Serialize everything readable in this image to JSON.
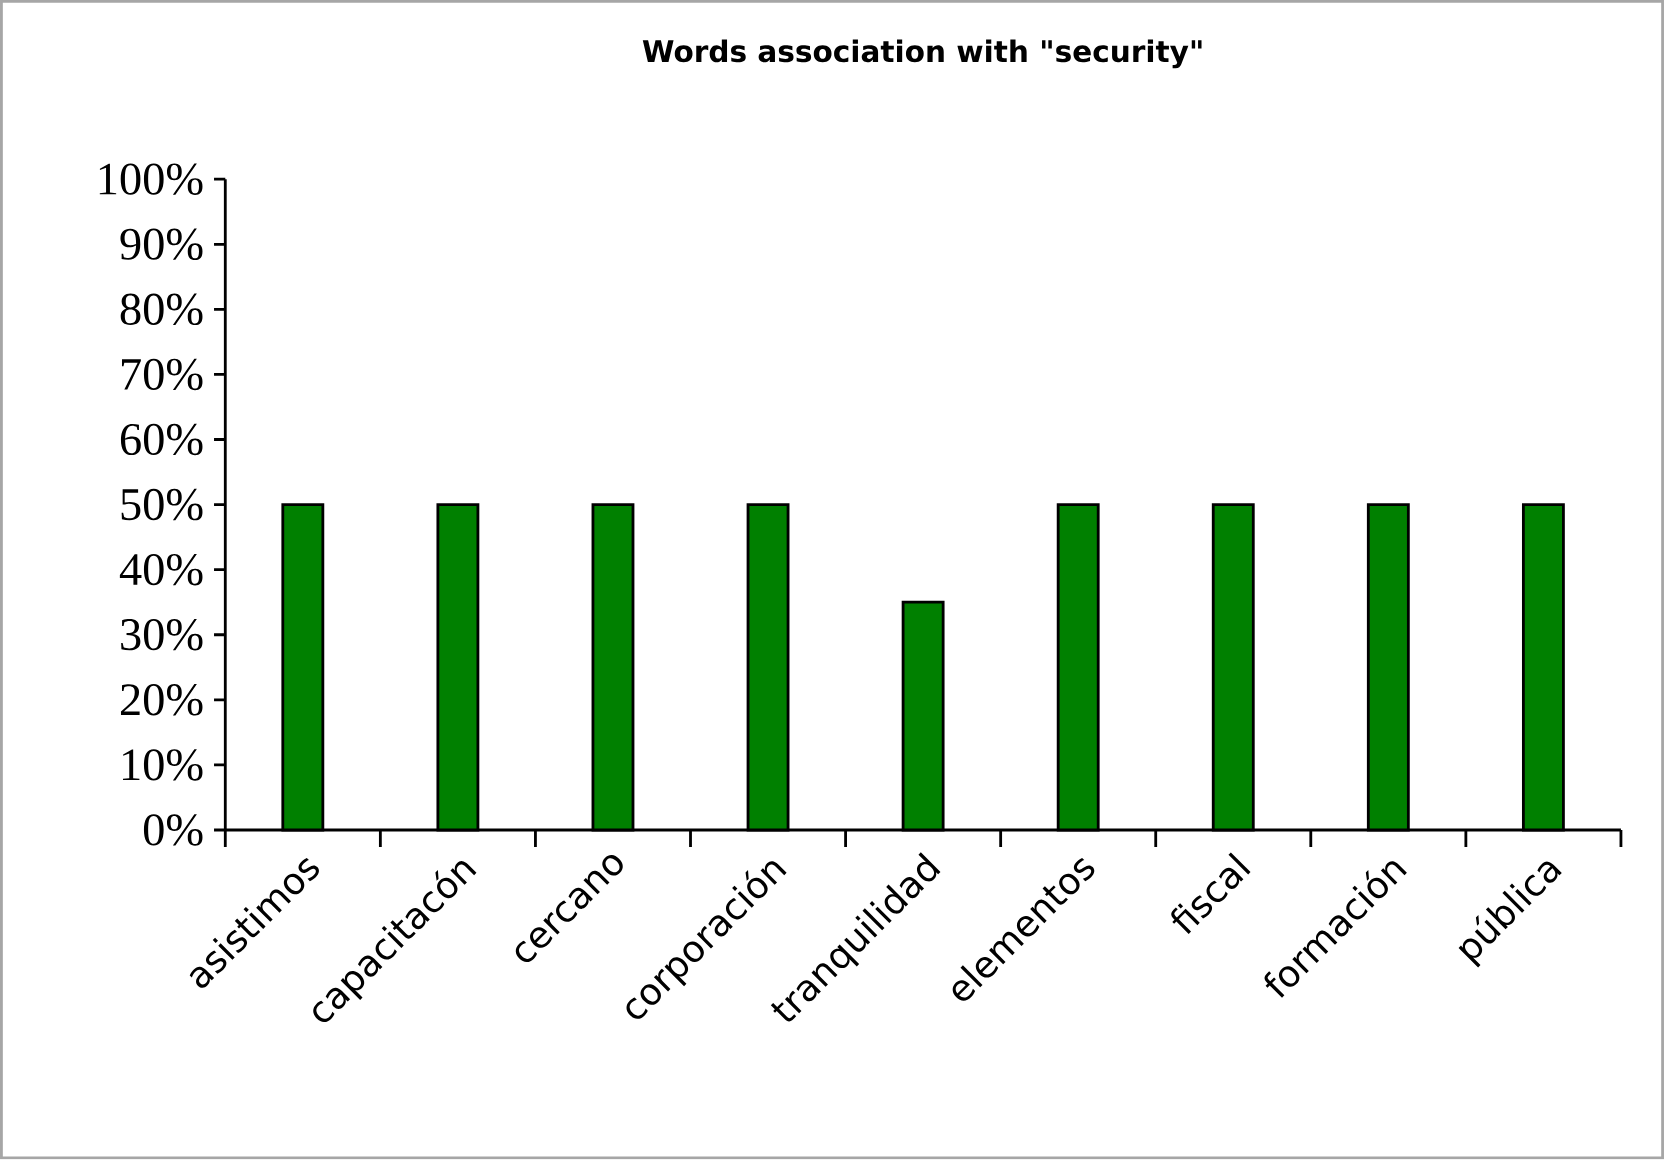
{
  "chart_data": {
    "type": "bar",
    "title": "Words association with \"security\"",
    "categories": [
      "asistimos",
      "capacitacón",
      "cercano",
      "corporación",
      "tranquilidad",
      "elementos",
      "fiscal",
      "formación",
      "pública"
    ],
    "values": [
      50,
      50,
      50,
      50,
      35,
      50,
      50,
      50,
      50
    ],
    "color": "#008000",
    "ylim": [
      0,
      100
    ],
    "yticks": [
      {
        "value": 0,
        "label": "0%"
      },
      {
        "value": 10,
        "label": "10%"
      },
      {
        "value": 20,
        "label": "20%"
      },
      {
        "value": 30,
        "label": "30%"
      },
      {
        "value": 40,
        "label": "40%"
      },
      {
        "value": 50,
        "label": "50%"
      },
      {
        "value": 60,
        "label": "60%"
      },
      {
        "value": 70,
        "label": "70%"
      },
      {
        "value": 80,
        "label": "80%"
      },
      {
        "value": 90,
        "label": "90%"
      },
      {
        "value": 100,
        "label": "100%"
      }
    ],
    "grid": false
  }
}
